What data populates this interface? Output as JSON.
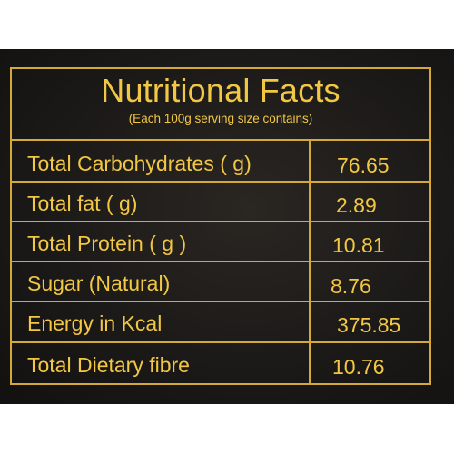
{
  "title": "Nutritional Facts",
  "subtitle": "(Each 100g serving size contains)",
  "colors": {
    "text_gold": "#f2c744",
    "border_gold": "#d4a93a",
    "background": "#1c1a18"
  },
  "rows": [
    {
      "label": "Total Carbohydrates ( g)",
      "value": "76.65"
    },
    {
      "label": "Total fat ( g)",
      "value": "2.89"
    },
    {
      "label": "Total Protein ( g )",
      "value": "10.81"
    },
    {
      "label": "Sugar (Natural)",
      "value": "8.76"
    },
    {
      "label": "Energy in Kcal",
      "value": "375.85"
    },
    {
      "label": "Total Dietary fibre",
      "value": "10.76"
    }
  ]
}
